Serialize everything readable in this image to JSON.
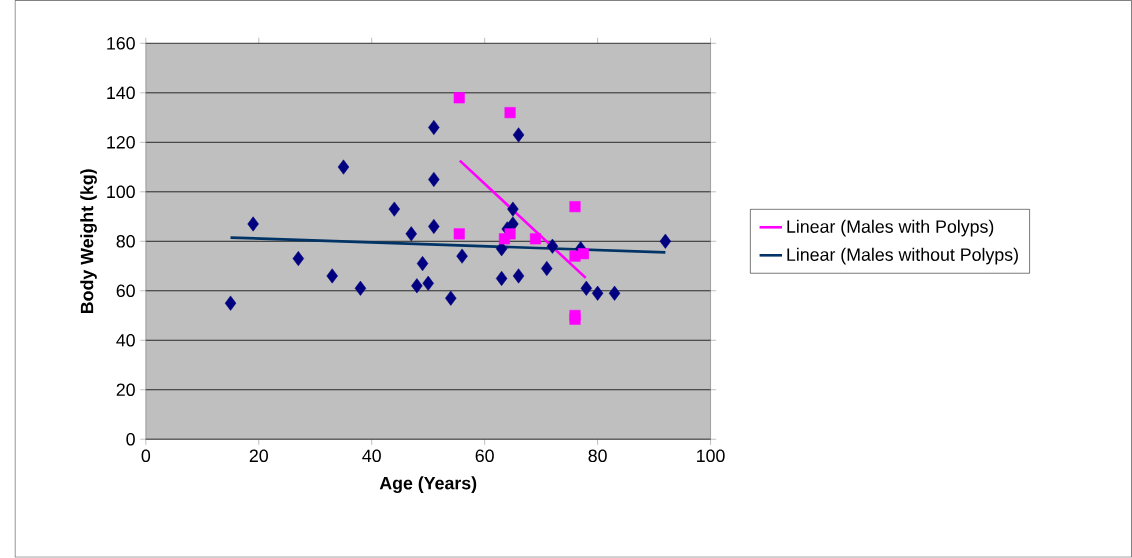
{
  "chart_data": {
    "type": "scatter",
    "xlabel": "Age (Years)",
    "ylabel": "Body Weight (kg)",
    "xlim": [
      0,
      100
    ],
    "ylim": [
      0,
      160
    ],
    "xticks": [
      0,
      20,
      40,
      60,
      80,
      100
    ],
    "yticks": [
      0,
      20,
      40,
      60,
      80,
      100,
      120,
      140,
      160
    ],
    "grid": "y",
    "legend": "right",
    "series": [
      {
        "color": "#000080",
        "marker": "diamond",
        "x": [
          15,
          19,
          27,
          33,
          35,
          38,
          44,
          47,
          48,
          49,
          50,
          51,
          51,
          51,
          54,
          56,
          63,
          63,
          64,
          65,
          65,
          66,
          66,
          71,
          72,
          77,
          78,
          80,
          83,
          92
        ],
        "values": [
          55,
          87,
          73,
          66,
          110,
          61,
          93,
          83,
          62,
          71,
          63,
          126,
          105,
          86,
          57,
          74,
          77,
          65,
          85,
          93,
          87,
          66,
          123,
          69,
          78,
          77,
          61,
          59,
          59,
          80
        ]
      },
      {
        "color": "#ff00ff",
        "marker": "square",
        "x": [
          55.5,
          55.5,
          64.5,
          63.5,
          64.5,
          69,
          76,
          76,
          77.5,
          76,
          76
        ],
        "values": [
          138,
          83,
          132,
          81,
          83,
          81,
          94,
          74,
          75,
          50,
          48.5
        ]
      },
      {
        "type": "line",
        "name": "Linear (Males with Polyps)",
        "color": "#ff00ff",
        "marker": "none",
        "x": [
          55.6,
          77.9
        ],
        "values": [
          112.6,
          65.2
        ]
      },
      {
        "type": "line",
        "name": "Linear (Males without Polyps)",
        "color": "#003366",
        "marker": "none",
        "x": [
          15,
          92
        ],
        "values": [
          81.5,
          75.5
        ]
      }
    ]
  }
}
